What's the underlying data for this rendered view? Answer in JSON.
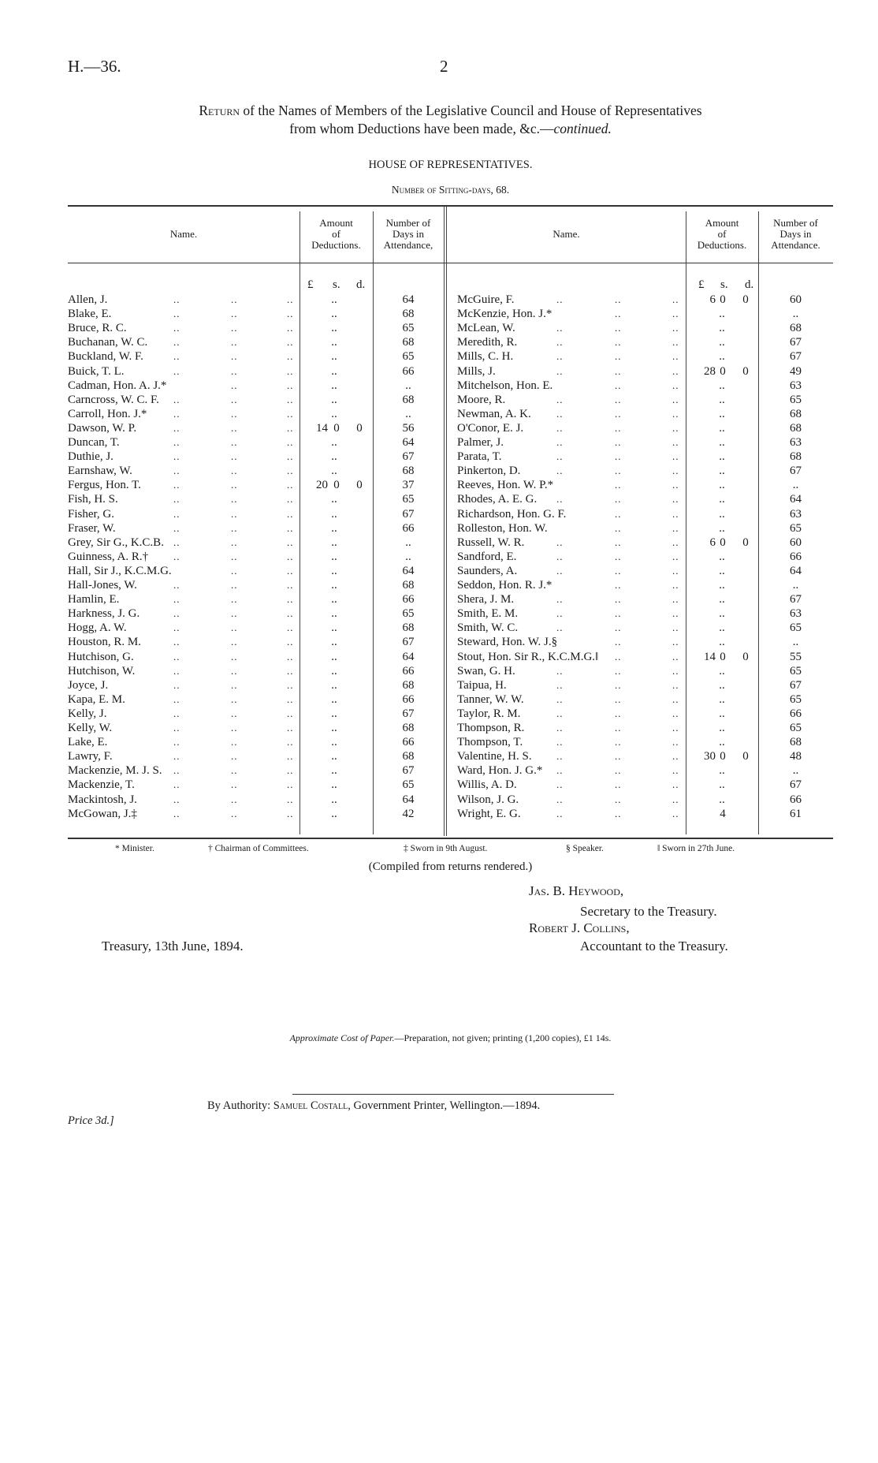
{
  "header": {
    "ref": "H.—36.",
    "page": "2"
  },
  "title": {
    "lead": "Return",
    "line1": " of the Names of Members of the Legislative Council and House of Representatives",
    "line2": "from whom Deductions have been made, &c.—",
    "line2_italic": "continued."
  },
  "section": "HOUSE OF REPRESENTATIVES.",
  "subtitle": "Number of Sitting-days, 68.",
  "columns": {
    "name": "Name.",
    "amount": [
      "Amount",
      "of",
      "Deductions."
    ],
    "days_left": [
      "Number of",
      "Days in",
      "Attendance,"
    ],
    "days_right": [
      "Number of",
      "Days in",
      "Attendance."
    ],
    "units": [
      "£",
      "s.",
      "d."
    ]
  },
  "leader": "..",
  "left_rows": [
    {
      "name": "Allen, J.",
      "amount": null,
      "days": "64"
    },
    {
      "name": "Blake, E.",
      "amount": null,
      "days": "68"
    },
    {
      "name": "Bruce, R. C.",
      "amount": null,
      "days": "65"
    },
    {
      "name": "Buchanan, W. C.",
      "amount": null,
      "days": "68"
    },
    {
      "name": "Buckland, W. F.",
      "amount": null,
      "days": "65"
    },
    {
      "name": "Buick, T. L.",
      "amount": null,
      "days": "66"
    },
    {
      "name": "Cadman, Hon. A. J.*",
      "amount": null,
      "days": ".."
    },
    {
      "name": "Carncross, W. C. F.",
      "amount": null,
      "days": "68"
    },
    {
      "name": "Carroll, Hon. J.*",
      "amount": null,
      "days": ".."
    },
    {
      "name": "Dawson, W. P.",
      "amount": [
        "14",
        "0",
        "0"
      ],
      "days": "56"
    },
    {
      "name": "Duncan, T.",
      "amount": null,
      "days": "64"
    },
    {
      "name": "Duthie, J.",
      "amount": null,
      "days": "67"
    },
    {
      "name": "Earnshaw, W.",
      "amount": null,
      "days": "68"
    },
    {
      "name": "Fergus, Hon. T.",
      "amount": [
        "20",
        "0",
        "0"
      ],
      "days": "37"
    },
    {
      "name": "Fish, H. S.",
      "amount": null,
      "days": "65"
    },
    {
      "name": "Fisher, G.",
      "amount": null,
      "days": "67"
    },
    {
      "name": "Fraser, W.",
      "amount": null,
      "days": "66"
    },
    {
      "name": "Grey, Sir G., K.C.B.",
      "amount": null,
      "days": ".."
    },
    {
      "name": "Guinness, A. R.†",
      "amount": null,
      "days": ".."
    },
    {
      "name": "Hall, Sir J., K.C.M.G.",
      "amount": null,
      "days": "64"
    },
    {
      "name": "Hall-Jones, W.",
      "amount": null,
      "days": "68"
    },
    {
      "name": "Hamlin, E.",
      "amount": null,
      "days": "66"
    },
    {
      "name": "Harkness, J. G.",
      "amount": null,
      "days": "65"
    },
    {
      "name": "Hogg, A. W.",
      "amount": null,
      "days": "68"
    },
    {
      "name": "Houston, R. M.",
      "amount": null,
      "days": "67"
    },
    {
      "name": "Hutchison, G.",
      "amount": null,
      "days": "64"
    },
    {
      "name": "Hutchison, W.",
      "amount": null,
      "days": "66"
    },
    {
      "name": "Joyce, J.",
      "amount": null,
      "days": "68"
    },
    {
      "name": "Kapa, E. M.",
      "amount": null,
      "days": "66"
    },
    {
      "name": "Kelly, J.",
      "amount": null,
      "days": "67"
    },
    {
      "name": "Kelly, W.",
      "amount": null,
      "days": "68"
    },
    {
      "name": "Lake, E.",
      "amount": null,
      "days": "66"
    },
    {
      "name": "Lawry, F.",
      "amount": null,
      "days": "68"
    },
    {
      "name": "Mackenzie, M. J. S.",
      "amount": null,
      "days": "67"
    },
    {
      "name": "Mackenzie, T.",
      "amount": null,
      "days": "65"
    },
    {
      "name": "Mackintosh, J.",
      "amount": null,
      "days": "64"
    },
    {
      "name": "McGowan, J.‡",
      "amount": null,
      "days": "42"
    }
  ],
  "right_rows": [
    {
      "name": "McGuire, F.",
      "amount": [
        "6",
        "0",
        "0"
      ],
      "days": "60"
    },
    {
      "name": "McKenzie, Hon. J.*",
      "amount": null,
      "days": ".."
    },
    {
      "name": "McLean, W.",
      "amount": null,
      "days": "68"
    },
    {
      "name": "Meredith, R.",
      "amount": null,
      "days": "67"
    },
    {
      "name": "Mills, C. H.",
      "amount": null,
      "days": "67"
    },
    {
      "name": "Mills, J.",
      "amount": [
        "28",
        "0",
        "0"
      ],
      "days": "49"
    },
    {
      "name": "Mitchelson, Hon. E.",
      "amount": null,
      "days": "63"
    },
    {
      "name": "Moore, R.",
      "amount": null,
      "days": "65"
    },
    {
      "name": "Newman, A. K.",
      "amount": null,
      "days": "68"
    },
    {
      "name": "O'Conor, E. J.",
      "amount": null,
      "days": "68"
    },
    {
      "name": "Palmer, J.",
      "amount": null,
      "days": "63"
    },
    {
      "name": "Parata, T.",
      "amount": null,
      "days": "68"
    },
    {
      "name": "Pinkerton, D.",
      "amount": null,
      "days": "67"
    },
    {
      "name": "Reeves, Hon. W. P.*",
      "amount": null,
      "days": ".."
    },
    {
      "name": "Rhodes, A. E. G.",
      "amount": null,
      "days": "64"
    },
    {
      "name": "Richardson, Hon. G. F.",
      "amount": null,
      "days": "63"
    },
    {
      "name": "Rolleston, Hon. W.",
      "amount": null,
      "days": "65"
    },
    {
      "name": "Russell, W. R.",
      "amount": [
        "6",
        "0",
        "0"
      ],
      "days": "60"
    },
    {
      "name": "Sandford, E.",
      "amount": null,
      "days": "66"
    },
    {
      "name": "Saunders, A.",
      "amount": null,
      "days": "64"
    },
    {
      "name": "Seddon, Hon. R. J.*",
      "amount": null,
      "days": ".."
    },
    {
      "name": "Shera, J. M.",
      "amount": null,
      "days": "67"
    },
    {
      "name": "Smith, E. M.",
      "amount": null,
      "days": "63"
    },
    {
      "name": "Smith, W. C.",
      "amount": null,
      "days": "65"
    },
    {
      "name": "Steward, Hon. W. J.§",
      "amount": null,
      "days": ".."
    },
    {
      "name": "Stout, Hon. Sir R., K.C.M.G.‖",
      "amount": [
        "14",
        "0",
        "0"
      ],
      "days": "55"
    },
    {
      "name": "Swan, G. H.",
      "amount": null,
      "days": "65"
    },
    {
      "name": "Taipua, H.",
      "amount": null,
      "days": "67"
    },
    {
      "name": "Tanner, W. W.",
      "amount": null,
      "days": "65"
    },
    {
      "name": "Taylor, R. M.",
      "amount": null,
      "days": "66"
    },
    {
      "name": "Thompson, R.",
      "amount": null,
      "days": "65"
    },
    {
      "name": "Thompson, T.",
      "amount": null,
      "days": "68"
    },
    {
      "name": "Valentine, H. S.",
      "amount": [
        "30",
        "0",
        "0"
      ],
      "days": "48"
    },
    {
      "name": "Ward, Hon. J. G.*",
      "amount": null,
      "days": ".."
    },
    {
      "name": "Willis, A. D.",
      "amount": null,
      "days": "67"
    },
    {
      "name": "Wilson, J. G.",
      "amount": null,
      "days": "66"
    },
    {
      "name": "Wright, E. G.",
      "amount": [
        "",
        "4",
        ""
      ],
      "days": "61"
    }
  ],
  "footnotes": [
    "* Minister.",
    "† Chairman of Committees.",
    "‡ Sworn in 9th August.",
    "§ Speaker.",
    "‖ Sworn in 27th June."
  ],
  "compiled": "(Compiled from returns rendered.)",
  "signatures": [
    {
      "name": "Jas. B. Heywood,",
      "title": "Secretary to the Treasury."
    },
    {
      "name": "Robert J. Collins,",
      "title": "Accountant to the Treasury."
    }
  ],
  "date": "Treasury, 13th June, 1894.",
  "cost": {
    "label": "Approximate Cost of Paper.",
    "text": "—Preparation, not given; printing (1,200 copies), £1 14s."
  },
  "imprint": {
    "prefix": "By Authority: ",
    "printer": "Samuel Costall",
    "suffix": ", Government Printer, Wellington.—1894."
  },
  "price": "Price 3d.]"
}
